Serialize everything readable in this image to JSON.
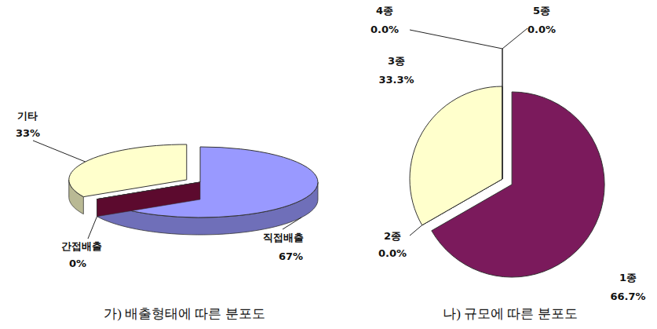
{
  "chart_data": [
    {
      "type": "pie",
      "title": "가) 배출형태에 따른 분포도",
      "categories": [
        "직접배출",
        "간접배출",
        "기타"
      ],
      "values": [
        67,
        0,
        33
      ],
      "value_labels": [
        "67%",
        "0%",
        "33%"
      ],
      "colors": [
        "#9999ff",
        "#5c0a2e",
        "#ffffcc"
      ],
      "data_labels": true
    },
    {
      "type": "pie",
      "title": "나) 규모에 따른 분포도",
      "categories": [
        "1종",
        "2종",
        "3종",
        "4종",
        "5종"
      ],
      "values": [
        66.7,
        0,
        33.3,
        0,
        0
      ],
      "value_labels": [
        "66.7%",
        "0.0%",
        "33.3%",
        "0.0%",
        "0.0%"
      ],
      "colors": [
        "#7b1a5c",
        "#9999ff",
        "#ffffcc",
        "#ccffff",
        "#660066"
      ],
      "data_labels": true
    }
  ]
}
